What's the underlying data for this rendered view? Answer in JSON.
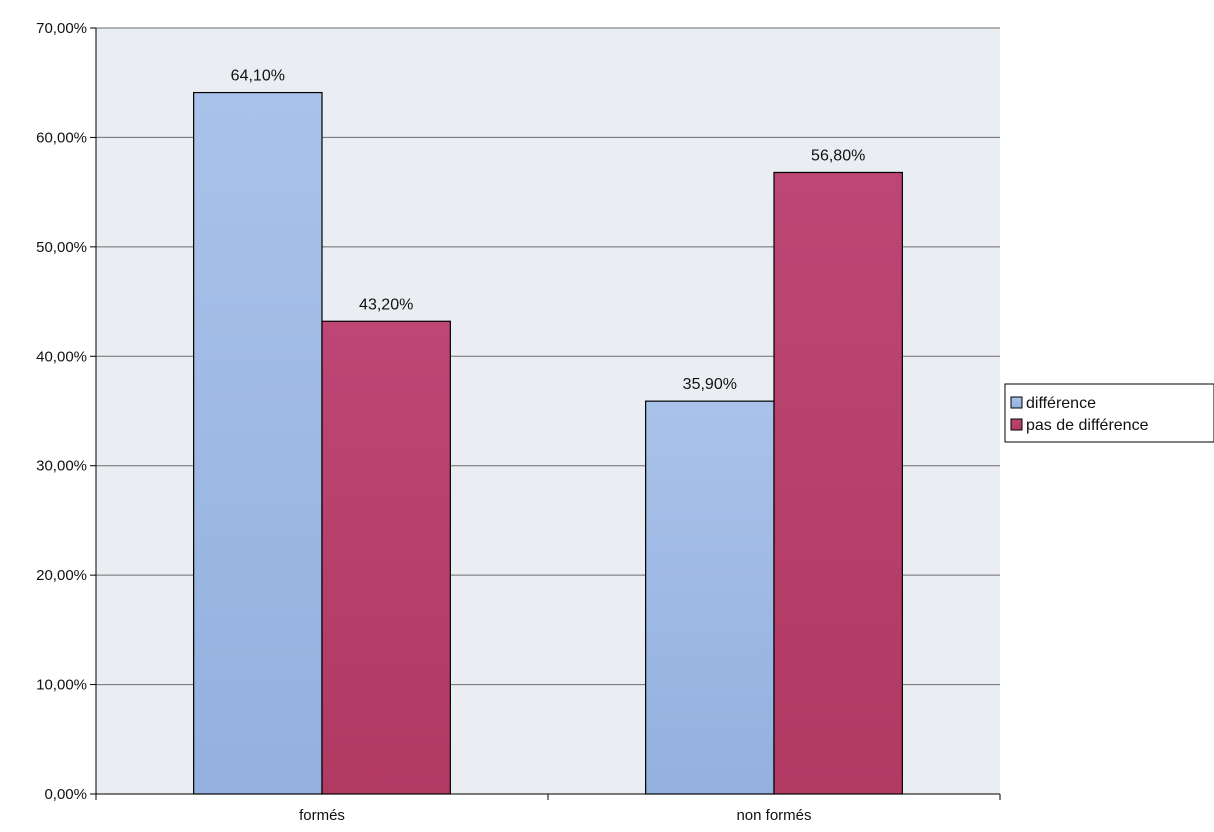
{
  "chart_data": {
    "type": "bar",
    "categories": [
      "formés",
      "non formés"
    ],
    "series": [
      {
        "name": "différence",
        "values": [
          64.1,
          35.9
        ],
        "labels": [
          "64,10%",
          "35,90%"
        ],
        "color": "#9fb9e2"
      },
      {
        "name": "pas de différence",
        "values": [
          43.2,
          56.8
        ],
        "labels": [
          "43,20%",
          "56,80%"
        ],
        "color": "#b6406a"
      }
    ],
    "ylim": [
      0,
      70
    ],
    "yticks": [
      "0,00%",
      "10,00%",
      "20,00%",
      "30,00%",
      "40,00%",
      "50,00%",
      "60,00%",
      "70,00%"
    ],
    "grid": true,
    "legend_position": "right",
    "plot_background": "#eaedf2"
  }
}
